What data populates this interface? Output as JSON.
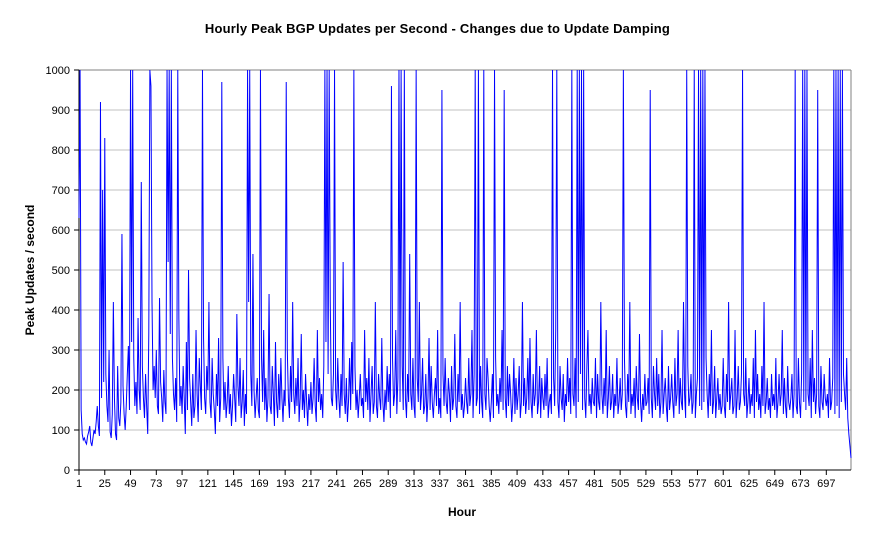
{
  "colors": {
    "line": "#0000FF",
    "gridline": "#C0C0C0",
    "plot_border": "#808080",
    "axis": "#000000",
    "background": "#FFFFFF",
    "text": "#000000"
  },
  "chart_data": {
    "type": "line",
    "title": "Hourly Peak BGP Updates per Second - Changes due to Update Damping",
    "xlabel": "Hour",
    "ylabel": "Peak Updates / second",
    "ylim": [
      0,
      1000
    ],
    "yticks": [
      0,
      100,
      200,
      300,
      400,
      500,
      600,
      700,
      800,
      900,
      1000
    ],
    "xticks": [
      1,
      25,
      49,
      73,
      97,
      121,
      145,
      169,
      193,
      217,
      241,
      265,
      289,
      313,
      337,
      361,
      385,
      409,
      433,
      457,
      481,
      505,
      529,
      553,
      577,
      601,
      625,
      649,
      673,
      697
    ],
    "x_range": [
      1,
      720
    ],
    "grid": "horizontal-only",
    "legend_position": "none",
    "values_clipped_at": 1000,
    "series": [
      {
        "name": "Hourly peak BGP updates per second",
        "color": "#0000FF",
        "values": [
          630,
          1000,
          150,
          90,
          75,
          80,
          70,
          65,
          85,
          95,
          110,
          70,
          60,
          80,
          100,
          90,
          120,
          160,
          110,
          85,
          920,
          180,
          700,
          220,
          830,
          240,
          160,
          120,
          300,
          95,
          80,
          140,
          420,
          180,
          90,
          75,
          260,
          130,
          110,
          170,
          590,
          210,
          140,
          100,
          160,
          240,
          310,
          150,
          1000,
          320,
          1000,
          280,
          160,
          220,
          140,
          380,
          200,
          150,
          720,
          260,
          180,
          130,
          240,
          160,
          90,
          340,
          1000,
          960,
          420,
          200,
          260,
          180,
          300,
          160,
          140,
          430,
          220,
          180,
          120,
          250,
          170,
          140,
          1000,
          520,
          1000,
          340,
          1000,
          280,
          190,
          150,
          230,
          120,
          1000,
          380,
          160,
          210,
          140,
          260,
          180,
          90,
          320,
          150,
          500,
          230,
          170,
          110,
          240,
          130,
          160,
          350,
          190,
          120,
          280,
          210,
          150,
          1000,
          330,
          180,
          140,
          260,
          200,
          420,
          170,
          130,
          280,
          190,
          150,
          90,
          240,
          160,
          330,
          120,
          180,
          970,
          280,
          150,
          220,
          130,
          170,
          260,
          140,
          190,
          110,
          160,
          240,
          180,
          120,
          390,
          210,
          160,
          280,
          130,
          170,
          250,
          110,
          190,
          140,
          1000,
          420,
          1000,
          240,
          160,
          540,
          200,
          130,
          180,
          230,
          150,
          130,
          1000,
          280,
          170,
          350,
          150,
          230,
          120,
          180,
          440,
          160,
          140,
          260,
          190,
          110,
          320,
          170,
          130,
          240,
          150,
          280,
          180,
          120,
          200,
          160,
          970,
          300,
          180,
          130,
          260,
          170,
          420,
          190,
          140,
          230,
          160,
          280,
          120,
          180,
          340,
          150,
          200,
          130,
          240,
          170,
          110,
          190,
          150,
          220,
          140,
          180,
          280,
          160,
          120,
          350,
          170,
          230,
          150,
          190,
          130,
          260,
          1000,
          320,
          1000,
          240,
          1000,
          420,
          180,
          160,
          240,
          1000,
          200,
          150,
          280,
          180,
          130,
          240,
          160,
          520,
          190,
          140,
          230,
          120,
          170,
          280,
          150,
          320,
          190,
          1000,
          260,
          150,
          200,
          130,
          180,
          240,
          160,
          180,
          130,
          350,
          170,
          230,
          150,
          280,
          120,
          190,
          260,
          140,
          170,
          420,
          160,
          130,
          240,
          180,
          150,
          330,
          170,
          120,
          200,
          150,
          260,
          170,
          240,
          130,
          960,
          280,
          160,
          190,
          350,
          140,
          230,
          1000,
          170,
          1000,
          260,
          150,
          1000,
          180,
          130,
          240,
          170,
          540,
          190,
          150,
          280,
          160,
          130,
          1000,
          230,
          170,
          420,
          150,
          190,
          280,
          140,
          160,
          240,
          120,
          180,
          330,
          150,
          260,
          170,
          130,
          190,
          230,
          160,
          350,
          140,
          180,
          130,
          950,
          240,
          160,
          280,
          170,
          140,
          230,
          190,
          120,
          260,
          150,
          180,
          340,
          160,
          130,
          240,
          170,
          420,
          150,
          190,
          130,
          160,
          230,
          170,
          140,
          280,
          160,
          190,
          350,
          130,
          240,
          1000,
          160,
          180,
          1000,
          140,
          260,
          170,
          130,
          1000,
          190,
          150,
          280,
          230,
          160,
          120,
          170,
          240,
          130,
          1000,
          280,
          160,
          190,
          140,
          230,
          170,
          350,
          150,
          950,
          180,
          130,
          260,
          160,
          240,
          190,
          120,
          170,
          280,
          140,
          230,
          150,
          190,
          260,
          130,
          170,
          420,
          160,
          230,
          140,
          180,
          280,
          150,
          330,
          170,
          130,
          240,
          160,
          190,
          350,
          140,
          170,
          260,
          130,
          230,
          180,
          150,
          240,
          160,
          280,
          130,
          170,
          190,
          140,
          1000,
          230,
          160,
          350,
          1000,
          170,
          130,
          260,
          180,
          150,
          240,
          120,
          190,
          160,
          280,
          170,
          230,
          140,
          1000,
          190,
          160,
          280,
          130,
          1000,
          170,
          1000,
          240,
          1000,
          150,
          1000,
          180,
          130,
          260,
          350,
          160,
          190,
          140,
          230,
          170,
          160,
          280,
          130,
          240,
          170,
          150,
          420,
          190,
          140,
          230,
          160,
          350,
          130,
          180,
          260,
          150,
          170,
          240,
          130,
          190,
          160,
          280,
          140,
          170,
          230,
          150,
          190,
          1000,
          280,
          160,
          130,
          240,
          170,
          420,
          140,
          190,
          160,
          230,
          130,
          260,
          180,
          150,
          340,
          170,
          120,
          190,
          150,
          240,
          160,
          170,
          230,
          140,
          950,
          180,
          130,
          260,
          190,
          150,
          280,
          160,
          240,
          130,
          170,
          350,
          140,
          190,
          230,
          160,
          120,
          260,
          150,
          180,
          240,
          170,
          130,
          280,
          160,
          190,
          350,
          140,
          230,
          170,
          150,
          420,
          190,
          130,
          1000,
          260,
          160,
          180,
          240,
          140,
          170,
          1000,
          130,
          190,
          230,
          1000,
          160,
          1000,
          150,
          1000,
          170,
          1000,
          280,
          190,
          130,
          240,
          160,
          350,
          140,
          170,
          260,
          130,
          180,
          230,
          150,
          190,
          140,
          160,
          280,
          160,
          130,
          240,
          170,
          420,
          150,
          190,
          230,
          140,
          160,
          350,
          130,
          180,
          260,
          150,
          170,
          240,
          1000,
          190,
          160,
          280,
          130,
          170,
          230,
          140,
          190,
          160,
          280,
          130,
          350,
          170,
          240,
          150,
          190,
          130,
          260,
          160,
          420,
          140,
          170,
          230,
          150,
          180,
          130,
          240,
          160,
          190,
          150,
          280,
          130,
          170,
          240,
          160,
          190,
          350,
          140,
          230,
          160,
          130,
          260,
          170,
          150,
          180,
          240,
          130,
          190,
          1000,
          160,
          140,
          280,
          170,
          130,
          240,
          1000,
          170,
          1000,
          150,
          1000,
          190,
          160,
          280,
          130,
          350,
          170,
          230,
          140,
          190,
          950,
          160,
          130,
          260,
          170,
          150,
          240,
          180,
          160,
          190,
          130,
          280,
          150,
          170,
          230,
          1000,
          140,
          1000,
          160,
          1000,
          130,
          1000,
          170,
          1000,
          240,
          190,
          150,
          280,
          130,
          90,
          60,
          30
        ]
      }
    ]
  }
}
